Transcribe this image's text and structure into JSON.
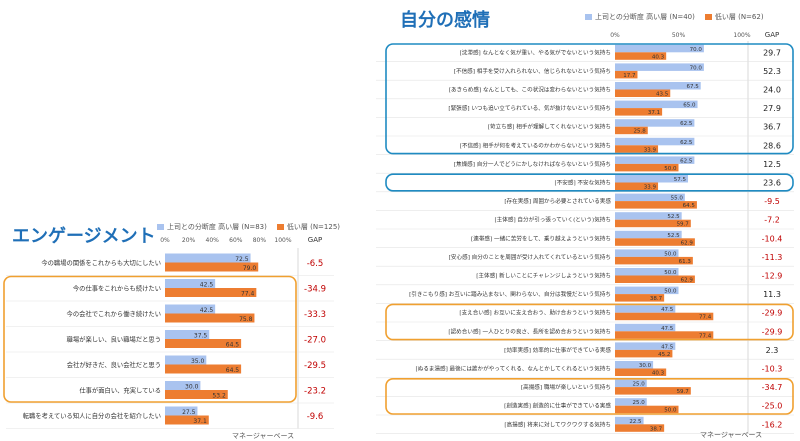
{
  "charts": {
    "left": {
      "title": "エンゲージメント",
      "legend_high": "上司との分断度 高い層 (N=83)",
      "legend_low": "低い層 (N=125)",
      "gap_header": "GAP",
      "footnote": "マネージャーベース"
    },
    "right": {
      "title": "自分の感情",
      "legend_high": "上司との分断度 高い層 (N=40)",
      "legend_low": "低い層 (N=62)",
      "gap_header": "GAP",
      "footnote": "マネージャーベース"
    }
  },
  "colors": {
    "high": "#a9c3ef",
    "low": "#ed7d31",
    "gap_negative": "#c00000",
    "gap_positive": "#222222",
    "highlight_blue": "#1f8bc2",
    "highlight_orange": "#f0a030",
    "title": "#1f6fb7"
  },
  "chart_data": [
    {
      "type": "bar",
      "title": "エンゲージメント",
      "xlim": [
        0,
        100
      ],
      "tick_labels": [
        "0%",
        "20%",
        "40%",
        "60%",
        "80%",
        "100%"
      ],
      "categories": [
        "今の職場の関係をこれからも大切にしたい",
        "今の仕事をこれからも続けたい",
        "今の会社でこれから働き続けたい",
        "職場が楽しい、良い職場だと思う",
        "会社が好きだ、良い会社だと思う",
        "仕事が面白い、充実している",
        "転職を考えている知人に自分の会社を紹介したい"
      ],
      "series": [
        {
          "name": "上司との分断度 高い層 (N=83)",
          "values": [
            72.5,
            42.5,
            42.5,
            37.5,
            35.0,
            30.0,
            27.5
          ]
        },
        {
          "name": "低い層 (N=125)",
          "values": [
            79.0,
            77.4,
            75.8,
            64.5,
            64.5,
            53.2,
            37.1
          ]
        }
      ],
      "gap": [
        "-6.5",
        "-34.9",
        "-33.3",
        "-27.0",
        "-29.5",
        "-23.2",
        "-9.6"
      ],
      "highlight_orange_rows": [
        1,
        5
      ]
    },
    {
      "type": "bar",
      "title": "自分の感情",
      "xlim": [
        0,
        100
      ],
      "tick_labels": [
        "0%",
        "50%",
        "100%"
      ],
      "categories": [
        "[沈滞感] なんとなく気が重い、やる気がでないという気持ち",
        "[不信感] 相手を受け入れられない、信じられないという気持ち",
        "[あきらめ感] なんとしても、この状況は変わらないという気持ち",
        "[緊張感] いつも追い立てられている、気が抜けないという気持ち",
        "[苛立ち感] 相手が理解してくれないという気持ち",
        "[不信感] 相手が何を考えているのかわからないという気持ち",
        "[焦燥感] 自分一人でどうにかしなければならないという気持ち",
        "[不安感] 不安な気持ち",
        "[存在実感] 周囲から必要とされている実感",
        "[主体感] 自分が引っ張っていく(という)気持ち",
        "[連帯感] 一緒に苦労をして、乗り越えようという気持ち",
        "[安心感] 自分のことを周囲が受け入れてくれているという気持ち",
        "[主体感] 新しいことにチャレンジしようという気持ち",
        "[引きこもり感] お互いに踏み込まない、関わらない、自分は我慢だという気持ち",
        "[支え合い感] お互いに支え合おう、助け合おうという気持ち",
        "[認め合い感] 一人ひとりの良さ、長所を認め合おうという気持ち",
        "[効率実感] 効率的に仕事ができている実感",
        "[ぬるま湯感] 最後には誰かがやってくれる、なんとかしてくれるという気持ち",
        "[高揚感] 職場が楽しいという気持ち",
        "[創造実感] 創造的に仕事ができている実感",
        "[高揚感] 将来に対してワクワクする気持ち"
      ],
      "series": [
        {
          "name": "上司との分断度 高い層 (N=40)",
          "values": [
            70.0,
            70.0,
            67.5,
            65.0,
            62.5,
            62.5,
            62.5,
            57.5,
            55.0,
            52.5,
            52.5,
            50.0,
            50.0,
            50.0,
            47.5,
            47.5,
            47.5,
            30.0,
            25.0,
            25.0,
            22.5
          ]
        },
        {
          "name": "低い層 (N=62)",
          "values": [
            40.3,
            17.7,
            43.5,
            37.1,
            25.8,
            33.9,
            50.0,
            33.9,
            64.5,
            59.7,
            62.9,
            61.3,
            62.9,
            38.7,
            77.4,
            77.4,
            45.2,
            40.3,
            59.7,
            50.0,
            38.7
          ]
        }
      ],
      "gap": [
        "29.7",
        "52.3",
        "24.0",
        "27.9",
        "36.7",
        "28.6",
        "12.5",
        "23.6",
        "-9.5",
        "-7.2",
        "-10.4",
        "-11.3",
        "-12.9",
        "11.3",
        "-29.9",
        "-29.9",
        "2.3",
        "-10.3",
        "-34.7",
        "-25.0",
        "-16.2"
      ],
      "highlight_blue_rows": [
        [
          0,
          5
        ],
        [
          7,
          7
        ]
      ],
      "highlight_orange_rows": [
        [
          14,
          15
        ],
        [
          18,
          19
        ]
      ]
    }
  ]
}
